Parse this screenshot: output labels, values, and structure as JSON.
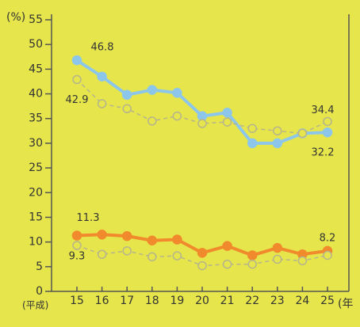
{
  "chart_data": {
    "type": "line",
    "y_label": "(%)",
    "x_label_left": "(平成)",
    "x_label_right": "(年",
    "categories": [
      "15",
      "16",
      "17",
      "18",
      "19",
      "20",
      "21",
      "22",
      "23",
      "24",
      "25"
    ],
    "series": [
      {
        "color": "#8cc6ea",
        "style": "filled",
        "values": [
          46.8,
          43.5,
          39.8,
          40.8,
          40.2,
          35.5,
          36.2,
          30,
          30,
          32,
          32.2
        ]
      },
      {
        "color": "#b5b48c",
        "style": "hollow",
        "values": [
          42.9,
          38,
          37,
          34.5,
          35.5,
          34,
          34.3,
          33,
          32.5,
          32,
          34.4
        ]
      },
      {
        "color": "#f08a2c",
        "style": "filled",
        "values": [
          11.3,
          11.5,
          11.2,
          10.3,
          10.5,
          7.8,
          9.2,
          7.3,
          8.8,
          7.5,
          8.2
        ]
      },
      {
        "color": "#b5b48c",
        "style": "hollow",
        "values": [
          9.3,
          7.5,
          8.2,
          7,
          7.2,
          5.2,
          5.5,
          5.5,
          6.5,
          6.2,
          7.3
        ]
      }
    ],
    "ylim": [
      0,
      55
    ],
    "yticks": [
      0,
      5,
      10,
      15,
      20,
      25,
      30,
      35,
      40,
      45,
      50,
      55
    ]
  }
}
